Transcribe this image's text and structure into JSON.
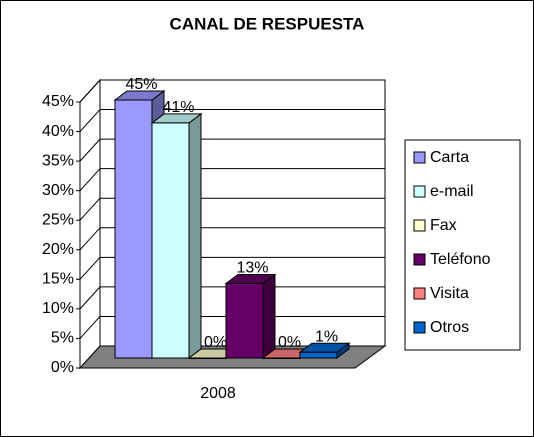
{
  "chart_data": {
    "type": "bar3d",
    "title": "CANAL DE RESPUESTA",
    "categories": [
      "2008"
    ],
    "series": [
      {
        "name": "Carta",
        "color": "#9999ff",
        "values": [
          45
        ],
        "value_labels": [
          "45%"
        ]
      },
      {
        "name": "e-mail",
        "color": "#ccffff",
        "values": [
          41
        ],
        "value_labels": [
          "41%"
        ]
      },
      {
        "name": "Fax",
        "color": "#ffffcc",
        "values": [
          0
        ],
        "value_labels": [
          "0%"
        ]
      },
      {
        "name": "Teléfono",
        "color": "#660066",
        "values": [
          13
        ],
        "value_labels": [
          "13%"
        ]
      },
      {
        "name": "Visita",
        "color": "#ff8080",
        "values": [
          0
        ],
        "value_labels": [
          "0%"
        ]
      },
      {
        "name": "Otros",
        "color": "#0066cc",
        "values": [
          1
        ],
        "value_labels": [
          "1%"
        ]
      }
    ],
    "ylim": [
      0,
      45
    ],
    "yticks": [
      {
        "value": 0,
        "label": "0%"
      },
      {
        "value": 5,
        "label": "5%"
      },
      {
        "value": 10,
        "label": "10%"
      },
      {
        "value": 15,
        "label": "15%"
      },
      {
        "value": 20,
        "label": "20%"
      },
      {
        "value": 25,
        "label": "25%"
      },
      {
        "value": 30,
        "label": "30%"
      },
      {
        "value": 35,
        "label": "35%"
      },
      {
        "value": 40,
        "label": "40%"
      },
      {
        "value": 45,
        "label": "45%"
      }
    ],
    "grid": true,
    "legend": "right"
  }
}
